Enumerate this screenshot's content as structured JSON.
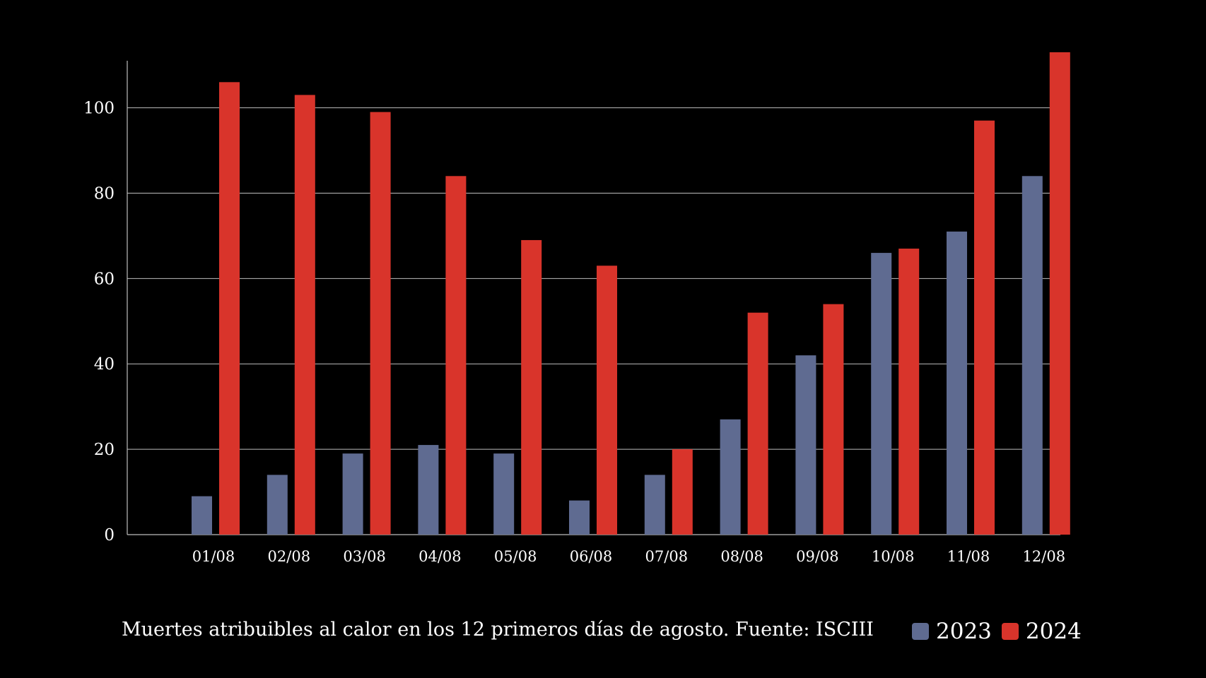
{
  "chart_data": {
    "type": "bar",
    "categories": [
      "01/08",
      "02/08",
      "03/08",
      "04/08",
      "05/08",
      "06/08",
      "07/08",
      "08/08",
      "09/08",
      "10/08",
      "11/08",
      "12/08"
    ],
    "series": [
      {
        "name": "2023",
        "color": "#5f6b91",
        "values": [
          9,
          14,
          19,
          21,
          19,
          8,
          14,
          27,
          42,
          66,
          71,
          84
        ]
      },
      {
        "name": "2024",
        "color": "#d9342b",
        "values": [
          106,
          103,
          99,
          84,
          69,
          63,
          20,
          52,
          54,
          67,
          97,
          113
        ]
      }
    ],
    "yticks": [
      0,
      20,
      40,
      60,
      80,
      100
    ],
    "ylim": [
      0,
      113
    ],
    "grid": true,
    "legend_position": "bottom-right",
    "caption": "Muertes atribuibles al calor en los 12 primeros días de agosto. Fuente: ISCIII"
  }
}
